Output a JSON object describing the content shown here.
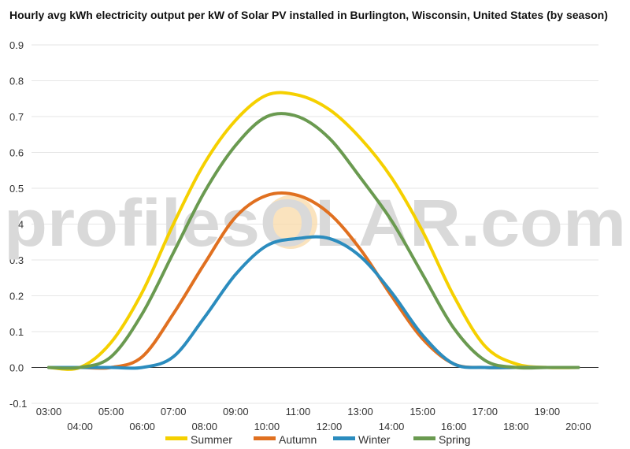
{
  "watermark": {
    "left": "profilesOLAR.com"
  },
  "colors": {
    "grid": "#e6e6e6",
    "zero_line": "#333333",
    "watermark": "#d9d9d9",
    "sun": "#f8d9a8"
  },
  "chart_data": {
    "type": "line",
    "title": "Hourly avg kWh electricity output per kW of Solar PV installed in Burlington, Wisconsin, United States (by season)",
    "xlabel": "",
    "ylabel": "",
    "x": [
      "03:00",
      "04:00",
      "05:00",
      "06:00",
      "07:00",
      "08:00",
      "09:00",
      "10:00",
      "11:00",
      "12:00",
      "13:00",
      "14:00",
      "15:00",
      "16:00",
      "17:00",
      "18:00",
      "19:00",
      "20:00"
    ],
    "ylim": [
      -0.1,
      0.9
    ],
    "yticks": [
      "-0.1",
      "0.0",
      "0.1",
      "0.2",
      "0.3",
      "0.4",
      "0.5",
      "0.6",
      "0.7",
      "0.8",
      "0.9"
    ],
    "grid": true,
    "legend_position": "bottom",
    "series": [
      {
        "name": "Summer",
        "color": "#f5d000",
        "values": [
          0.0,
          0.0,
          0.07,
          0.21,
          0.4,
          0.57,
          0.69,
          0.76,
          0.76,
          0.72,
          0.64,
          0.53,
          0.38,
          0.2,
          0.06,
          0.01,
          0.0,
          0.0
        ]
      },
      {
        "name": "Autumn",
        "color": "#e07020",
        "values": [
          0.0,
          0.0,
          0.0,
          0.03,
          0.15,
          0.29,
          0.42,
          0.48,
          0.48,
          0.43,
          0.33,
          0.2,
          0.08,
          0.01,
          0.0,
          0.0,
          0.0,
          0.0
        ]
      },
      {
        "name": "Winter",
        "color": "#2b8cbe",
        "values": [
          0.0,
          0.0,
          0.0,
          0.0,
          0.03,
          0.14,
          0.26,
          0.34,
          0.36,
          0.36,
          0.31,
          0.21,
          0.09,
          0.01,
          0.0,
          0.0,
          0.0,
          0.0
        ]
      },
      {
        "name": "Spring",
        "color": "#6a9a50",
        "values": [
          0.0,
          0.0,
          0.03,
          0.15,
          0.32,
          0.49,
          0.62,
          0.7,
          0.7,
          0.64,
          0.53,
          0.41,
          0.26,
          0.11,
          0.02,
          0.0,
          0.0,
          0.0
        ]
      }
    ]
  }
}
